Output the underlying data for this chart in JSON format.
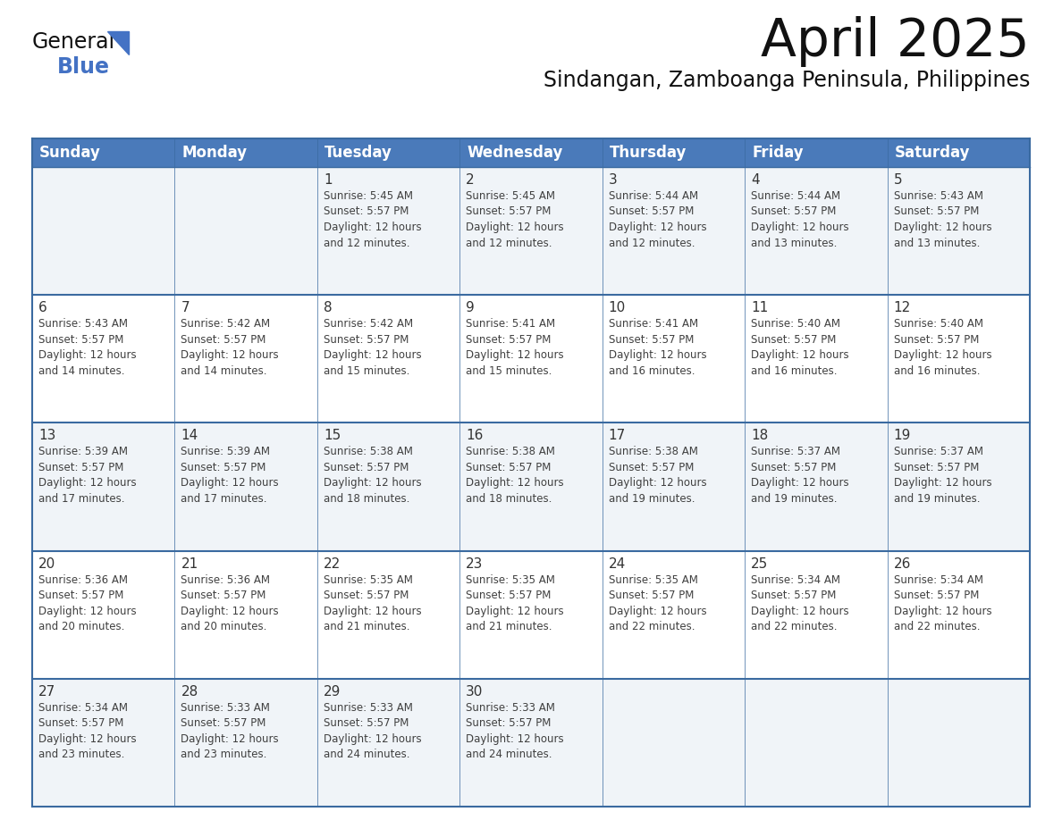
{
  "title": "April 2025",
  "subtitle": "Sindangan, Zamboanga Peninsula, Philippines",
  "header_bg_color": "#4a7aba",
  "header_text_color": "#FFFFFF",
  "days_of_week": [
    "Sunday",
    "Monday",
    "Tuesday",
    "Wednesday",
    "Thursday",
    "Friday",
    "Saturday"
  ],
  "weeks": [
    [
      {
        "day": "",
        "info": ""
      },
      {
        "day": "",
        "info": ""
      },
      {
        "day": "1",
        "info": "Sunrise: 5:45 AM\nSunset: 5:57 PM\nDaylight: 12 hours\nand 12 minutes."
      },
      {
        "day": "2",
        "info": "Sunrise: 5:45 AM\nSunset: 5:57 PM\nDaylight: 12 hours\nand 12 minutes."
      },
      {
        "day": "3",
        "info": "Sunrise: 5:44 AM\nSunset: 5:57 PM\nDaylight: 12 hours\nand 12 minutes."
      },
      {
        "day": "4",
        "info": "Sunrise: 5:44 AM\nSunset: 5:57 PM\nDaylight: 12 hours\nand 13 minutes."
      },
      {
        "day": "5",
        "info": "Sunrise: 5:43 AM\nSunset: 5:57 PM\nDaylight: 12 hours\nand 13 minutes."
      }
    ],
    [
      {
        "day": "6",
        "info": "Sunrise: 5:43 AM\nSunset: 5:57 PM\nDaylight: 12 hours\nand 14 minutes."
      },
      {
        "day": "7",
        "info": "Sunrise: 5:42 AM\nSunset: 5:57 PM\nDaylight: 12 hours\nand 14 minutes."
      },
      {
        "day": "8",
        "info": "Sunrise: 5:42 AM\nSunset: 5:57 PM\nDaylight: 12 hours\nand 15 minutes."
      },
      {
        "day": "9",
        "info": "Sunrise: 5:41 AM\nSunset: 5:57 PM\nDaylight: 12 hours\nand 15 minutes."
      },
      {
        "day": "10",
        "info": "Sunrise: 5:41 AM\nSunset: 5:57 PM\nDaylight: 12 hours\nand 16 minutes."
      },
      {
        "day": "11",
        "info": "Sunrise: 5:40 AM\nSunset: 5:57 PM\nDaylight: 12 hours\nand 16 minutes."
      },
      {
        "day": "12",
        "info": "Sunrise: 5:40 AM\nSunset: 5:57 PM\nDaylight: 12 hours\nand 16 minutes."
      }
    ],
    [
      {
        "day": "13",
        "info": "Sunrise: 5:39 AM\nSunset: 5:57 PM\nDaylight: 12 hours\nand 17 minutes."
      },
      {
        "day": "14",
        "info": "Sunrise: 5:39 AM\nSunset: 5:57 PM\nDaylight: 12 hours\nand 17 minutes."
      },
      {
        "day": "15",
        "info": "Sunrise: 5:38 AM\nSunset: 5:57 PM\nDaylight: 12 hours\nand 18 minutes."
      },
      {
        "day": "16",
        "info": "Sunrise: 5:38 AM\nSunset: 5:57 PM\nDaylight: 12 hours\nand 18 minutes."
      },
      {
        "day": "17",
        "info": "Sunrise: 5:38 AM\nSunset: 5:57 PM\nDaylight: 12 hours\nand 19 minutes."
      },
      {
        "day": "18",
        "info": "Sunrise: 5:37 AM\nSunset: 5:57 PM\nDaylight: 12 hours\nand 19 minutes."
      },
      {
        "day": "19",
        "info": "Sunrise: 5:37 AM\nSunset: 5:57 PM\nDaylight: 12 hours\nand 19 minutes."
      }
    ],
    [
      {
        "day": "20",
        "info": "Sunrise: 5:36 AM\nSunset: 5:57 PM\nDaylight: 12 hours\nand 20 minutes."
      },
      {
        "day": "21",
        "info": "Sunrise: 5:36 AM\nSunset: 5:57 PM\nDaylight: 12 hours\nand 20 minutes."
      },
      {
        "day": "22",
        "info": "Sunrise: 5:35 AM\nSunset: 5:57 PM\nDaylight: 12 hours\nand 21 minutes."
      },
      {
        "day": "23",
        "info": "Sunrise: 5:35 AM\nSunset: 5:57 PM\nDaylight: 12 hours\nand 21 minutes."
      },
      {
        "day": "24",
        "info": "Sunrise: 5:35 AM\nSunset: 5:57 PM\nDaylight: 12 hours\nand 22 minutes."
      },
      {
        "day": "25",
        "info": "Sunrise: 5:34 AM\nSunset: 5:57 PM\nDaylight: 12 hours\nand 22 minutes."
      },
      {
        "day": "26",
        "info": "Sunrise: 5:34 AM\nSunset: 5:57 PM\nDaylight: 12 hours\nand 22 minutes."
      }
    ],
    [
      {
        "day": "27",
        "info": "Sunrise: 5:34 AM\nSunset: 5:57 PM\nDaylight: 12 hours\nand 23 minutes."
      },
      {
        "day": "28",
        "info": "Sunrise: 5:33 AM\nSunset: 5:57 PM\nDaylight: 12 hours\nand 23 minutes."
      },
      {
        "day": "29",
        "info": "Sunrise: 5:33 AM\nSunset: 5:57 PM\nDaylight: 12 hours\nand 24 minutes."
      },
      {
        "day": "30",
        "info": "Sunrise: 5:33 AM\nSunset: 5:57 PM\nDaylight: 12 hours\nand 24 minutes."
      },
      {
        "day": "",
        "info": ""
      },
      {
        "day": "",
        "info": ""
      },
      {
        "day": "",
        "info": ""
      }
    ]
  ],
  "logo_text_general": "General",
  "logo_text_blue": "Blue",
  "header_color": "#4a7aba",
  "row_colors": [
    "#f0f4f8",
    "#ffffff",
    "#f0f4f8",
    "#ffffff",
    "#f0f4f8"
  ],
  "border_color": "#3a6aa0",
  "text_color": "#404040",
  "day_num_color": "#333333",
  "cell_text_font_size": 8.5,
  "day_num_font_size": 11,
  "header_font_size": 12
}
